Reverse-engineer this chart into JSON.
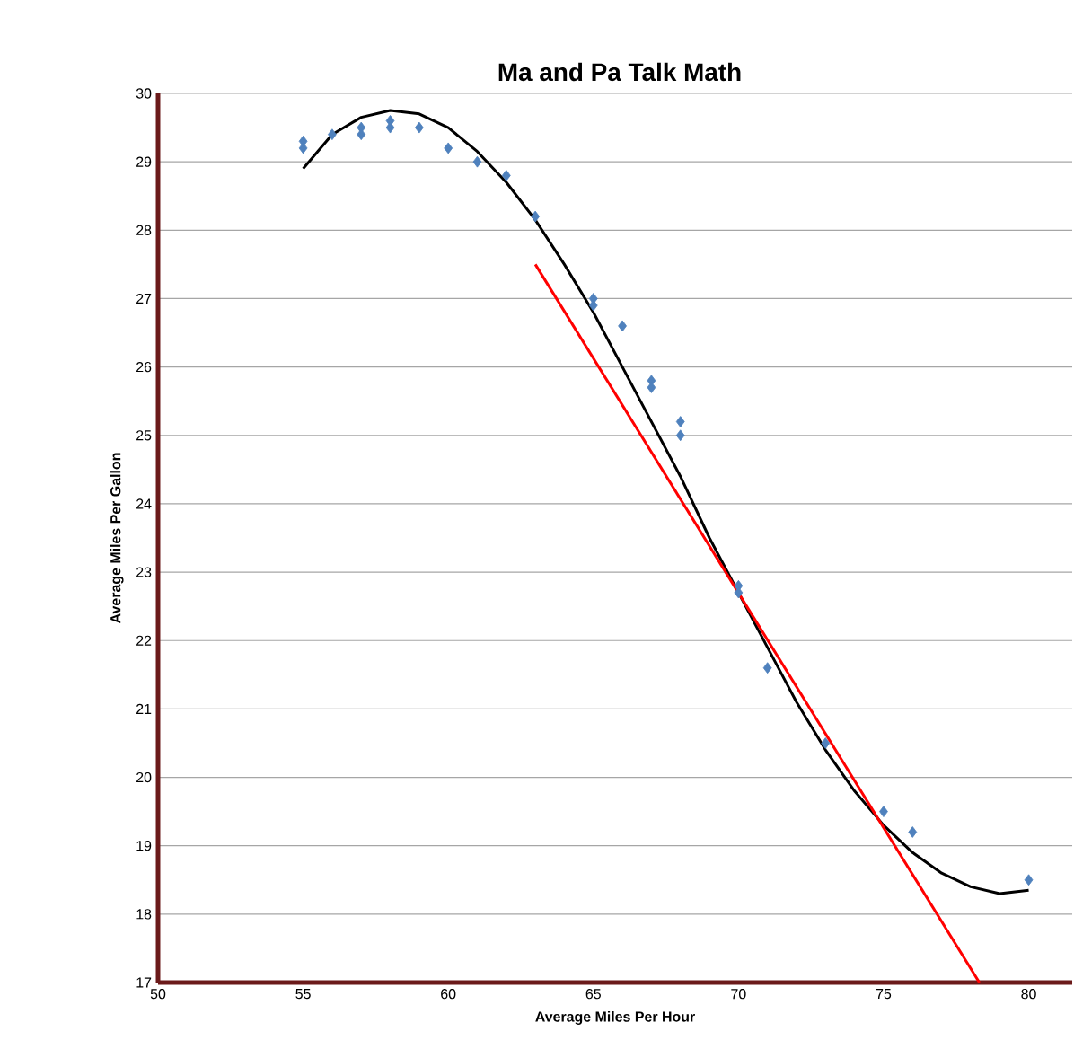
{
  "chart_data": {
    "type": "scatter",
    "title": "Ma and Pa Talk Math",
    "xlabel": "Average Miles Per Hour",
    "ylabel": "Average Miles Per Gallon",
    "xlim": [
      50,
      81.5
    ],
    "xticks": [
      50,
      55,
      60,
      65,
      70,
      75,
      80
    ],
    "ylim": [
      17,
      30
    ],
    "yticks": [
      17,
      18,
      19,
      20,
      21,
      22,
      23,
      24,
      25,
      26,
      27,
      28,
      29,
      30
    ],
    "grid": "y",
    "series": [
      {
        "marker": "diamond",
        "color": "#4f81bd",
        "x": [
          55,
          55,
          56,
          57,
          57,
          58,
          58,
          59,
          60,
          61,
          62,
          63,
          65,
          65,
          66,
          67,
          67,
          68,
          68,
          70,
          70,
          71,
          73,
          75,
          76,
          80
        ],
        "values": [
          29.3,
          29.2,
          29.4,
          29.5,
          29.4,
          29.6,
          29.5,
          29.5,
          29.2,
          29.0,
          28.8,
          28.2,
          27.0,
          26.9,
          26.6,
          25.8,
          25.7,
          25.2,
          25.0,
          22.8,
          22.7,
          21.6,
          20.5,
          19.5,
          19.2,
          18.5
        ]
      },
      {
        "type": "line",
        "marker": "none",
        "color": "#000000",
        "x": [
          55,
          56,
          57,
          58,
          59,
          60,
          61,
          62,
          63,
          64,
          65,
          66,
          67,
          68,
          69,
          71,
          72,
          73,
          74,
          75,
          76,
          77,
          78,
          79,
          80
        ],
        "values": [
          28.9,
          29.4,
          29.65,
          29.75,
          29.7,
          29.5,
          29.15,
          28.7,
          28.15,
          27.5,
          26.8,
          26.0,
          25.2,
          24.4,
          23.5,
          21.9,
          21.1,
          20.4,
          19.8,
          19.3,
          18.9,
          18.6,
          18.4,
          18.3,
          18.35
        ]
      },
      {
        "type": "line",
        "marker": "none",
        "color": "#ff0000",
        "x": [
          63,
          78.3
        ],
        "values": [
          27.5,
          17
        ]
      }
    ]
  }
}
